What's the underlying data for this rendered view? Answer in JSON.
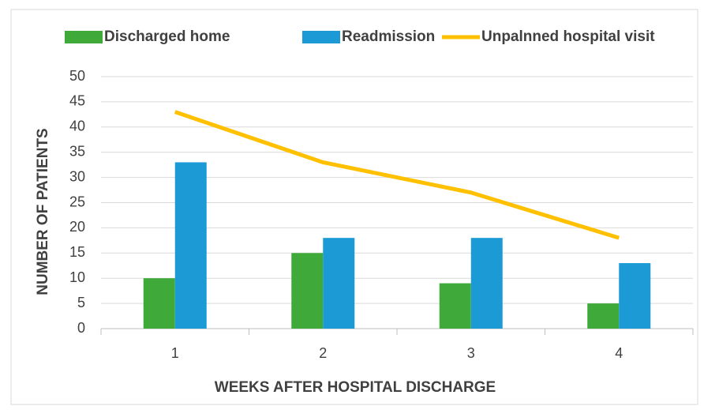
{
  "chart_data": {
    "type": "bar",
    "x_label": "WEEKS AFTER HOSPITAL DISCHARGE",
    "y_label": "NUMBER OF PATIENTS",
    "categories": [
      "1",
      "2",
      "3",
      "4"
    ],
    "series": [
      {
        "name": "Discharged home",
        "color": "#3faa3a",
        "type": "bar",
        "values": [
          10,
          15,
          9,
          5
        ]
      },
      {
        "name": "Readmission",
        "color": "#1c9ad6",
        "type": "bar",
        "values": [
          33,
          18,
          18,
          13
        ]
      },
      {
        "name": "Unpalnned hospital visit",
        "color": "#ffc000",
        "type": "line",
        "values": [
          43,
          33,
          27,
          18
        ]
      }
    ],
    "ylim": [
      0,
      50
    ],
    "yticks": [
      0,
      5,
      10,
      15,
      20,
      25,
      30,
      35,
      40,
      45,
      50
    ],
    "grid": true,
    "legend": "top"
  }
}
